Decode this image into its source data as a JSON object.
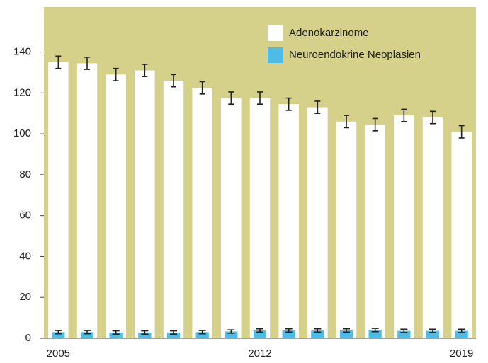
{
  "chart_data": {
    "type": "bar",
    "categories": [
      "2005",
      null,
      null,
      null,
      null,
      null,
      null,
      "2012",
      null,
      null,
      null,
      null,
      null,
      null,
      "2019"
    ],
    "series": [
      {
        "name": "Adenokarzinome",
        "color": "#ffffff",
        "values": [
          135,
          134.5,
          129,
          131,
          126,
          122.5,
          117.5,
          117.5,
          114.5,
          113,
          106,
          104.5,
          109,
          108,
          101
        ],
        "errors": [
          3,
          3,
          3,
          3,
          3,
          3,
          3,
          3,
          3,
          3,
          3,
          3,
          3,
          3,
          3
        ]
      },
      {
        "name": "Neuroendokrine Neoplasien",
        "color": "#4dbde8",
        "values": [
          3,
          3,
          2.8,
          2.8,
          2.8,
          3,
          3.3,
          3.8,
          3.8,
          3.8,
          3.8,
          4,
          3.6,
          3.6,
          3.6
        ],
        "errors": [
          0.8,
          0.8,
          0.8,
          0.8,
          0.8,
          0.8,
          0.8,
          0.8,
          0.8,
          0.8,
          0.8,
          0.8,
          0.8,
          0.8,
          0.8
        ]
      }
    ],
    "ylim": [
      0,
      162
    ],
    "yticks": [
      0,
      20,
      40,
      60,
      80,
      100,
      120,
      140
    ],
    "background": "#d5d18b",
    "legend": "top-right"
  }
}
